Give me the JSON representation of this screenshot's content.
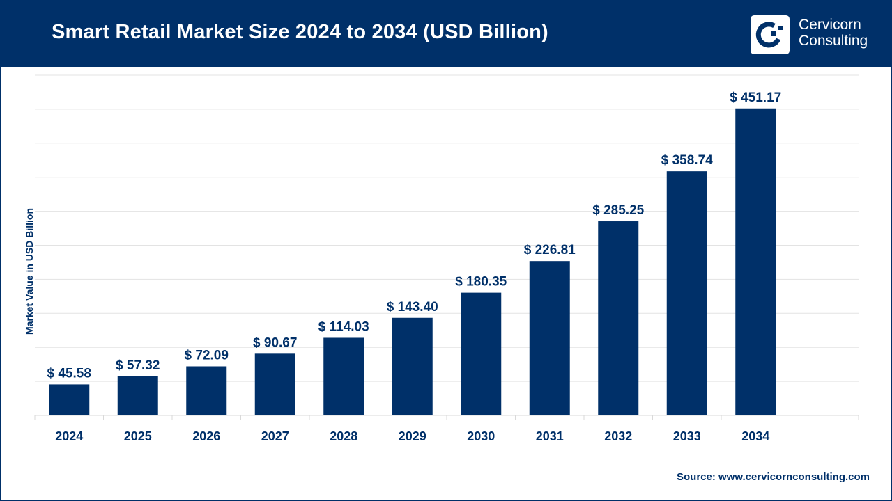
{
  "header": {
    "title": "Smart Retail Market Size 2024 to 2034 (USD Billion)",
    "logo": {
      "icon": "cervicorn-logo-icon",
      "line1": "Cervicorn",
      "line2": "Consulting"
    }
  },
  "colors": {
    "primary": "#003069",
    "grid": "#e3e3e3",
    "background": "#ffffff"
  },
  "source": "Source: www.cervicornconsulting.com",
  "chart_data": {
    "type": "bar",
    "title": "Smart Retail Market Size 2024 to 2034 (USD Billion)",
    "xlabel": "",
    "ylabel": "Market Value in USD Billion",
    "categories": [
      "2024",
      "2025",
      "2026",
      "2027",
      "2028",
      "2029",
      "2030",
      "2031",
      "2032",
      "2033",
      "2034"
    ],
    "values": [
      45.58,
      57.32,
      72.09,
      90.67,
      114.03,
      143.4,
      180.35,
      226.81,
      285.25,
      358.74,
      451.17
    ],
    "data_labels": [
      "$ 45.58",
      "$ 57.32",
      "$ 72.09",
      "$ 90.67",
      "$ 114.03",
      "$ 143.40",
      "$ 180.35",
      "$ 226.81",
      "$ 285.25",
      "$ 358.74",
      "$ 451.17"
    ],
    "ylim": [
      0,
      500
    ],
    "ytick_step": 50,
    "grid": true,
    "legend": "none",
    "empty_trailing_slots": 1
  }
}
